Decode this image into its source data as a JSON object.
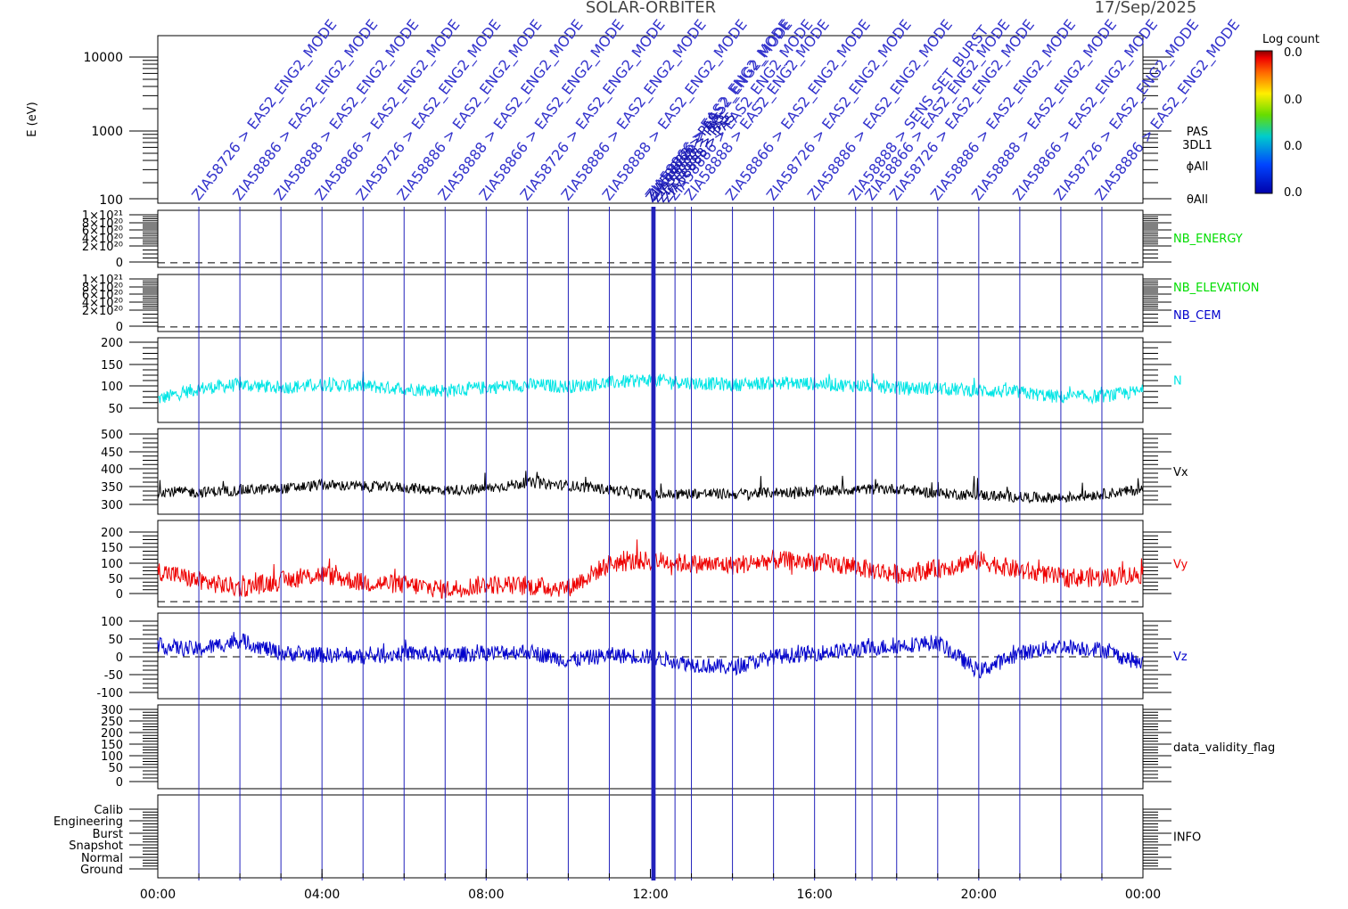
{
  "header": {
    "mission": "SOLAR-ORBITER",
    "date": "17/Sep/2025"
  },
  "colorbar": {
    "title": "Log count",
    "ticks": [
      "0.0",
      "0.0",
      "0.0",
      "0.0"
    ]
  },
  "spectrogram": {
    "ylabel": "E (eV)",
    "yticks": [
      "10000",
      "1000",
      "100"
    ],
    "labels": [
      "PAS",
      "3DL1",
      "ϕAll",
      "θAll"
    ]
  },
  "annotations": {
    "id": "ZIA58888",
    "arrow": ">",
    "mode": "EAS2_ENG2_MODE",
    "burst": "SENS_SET_BURST",
    "pas": "PAS",
    "alt_ids": [
      "ZIA58726",
      "ZIA58886",
      "ZIA58888",
      "ZIA58866"
    ],
    "event_times_h": [
      1.0,
      2.0,
      3.0,
      4.0,
      5.0,
      6.0,
      7.0,
      8.0,
      9.0,
      10.0,
      11.0,
      12.05,
      12.1,
      12.6,
      13.0,
      14.0,
      15.0,
      16.0,
      17.0,
      17.4,
      18.0,
      19.0,
      20.0,
      21.0,
      22.0,
      23.0
    ]
  },
  "panels": [
    {
      "key": "nb_energy",
      "label": "NB_ENERGY",
      "label_color": "#00dd00",
      "ticks": [
        "1×10²¹",
        "8×10²⁰",
        "6×10²⁰",
        "4×10²⁰",
        "2×10²⁰",
        "0"
      ],
      "extra_label": ""
    },
    {
      "key": "nb_elevation",
      "label": "NB_ELEVATION",
      "label_color": "#00dd00",
      "ticks": [
        "1×10²¹",
        "8×10²⁰",
        "6×10²⁰",
        "4×10²⁰",
        "2×10²⁰",
        "0"
      ],
      "extra_label": "NB_CEM",
      "extra_color": "#0000cc"
    },
    {
      "key": "n",
      "label": "N",
      "label_color": "#00e5e5",
      "ticks": [
        "200",
        "150",
        "100",
        "50"
      ]
    },
    {
      "key": "vx",
      "label": "Vx",
      "label_color": "#000000",
      "ticks": [
        "500",
        "450",
        "400",
        "350",
        "300"
      ]
    },
    {
      "key": "vy",
      "label": "Vy",
      "label_color": "#ee0000",
      "ticks": [
        "200",
        "150",
        "100",
        "50",
        "0"
      ]
    },
    {
      "key": "vz",
      "label": "Vz",
      "label_color": "#0000cc",
      "ticks": [
        "100",
        "50",
        "0",
        "-50",
        "-100"
      ]
    },
    {
      "key": "dvf",
      "label": "data_validity_flag",
      "label_color": "#000000",
      "ticks": [
        "300",
        "250",
        "200",
        "150",
        "100",
        "50",
        "0"
      ]
    },
    {
      "key": "info",
      "label": "INFO",
      "label_color": "#000000",
      "ticks": [
        "Calib",
        "Engineering",
        "Burst",
        "Snapshot",
        "Normal",
        "Ground"
      ]
    }
  ],
  "xaxis": {
    "ticks": [
      "00:00",
      "04:00",
      "08:00",
      "12:00",
      "16:00",
      "20:00",
      "00:00"
    ]
  },
  "chart_data": {
    "type": "line",
    "title": "SOLAR-ORBITER 17/Sep/2025",
    "x_unit": "hours",
    "xlim": [
      0,
      24
    ],
    "x": [
      0,
      1,
      2,
      3,
      4,
      5,
      6,
      7,
      8,
      9,
      10,
      11,
      12,
      13,
      14,
      15,
      16,
      17,
      18,
      19,
      20,
      21,
      22,
      23,
      24
    ],
    "series": [
      {
        "name": "N",
        "color": "#00e5e5",
        "ylim": [
          30,
          205
        ],
        "values": [
          78,
          100,
          108,
          102,
          108,
          105,
          100,
          96,
          102,
          108,
          104,
          112,
          118,
          112,
          108,
          112,
          110,
          106,
          102,
          100,
          96,
          92,
          82,
          84,
          95
        ]
      },
      {
        "name": "Vx",
        "color": "#000000",
        "ylim": [
          285,
          510
        ],
        "values": [
          345,
          343,
          348,
          352,
          362,
          358,
          355,
          348,
          352,
          368,
          360,
          350,
          335,
          340,
          338,
          342,
          345,
          350,
          352,
          340,
          335,
          330,
          328,
          338,
          350
        ]
      },
      {
        "name": "Vy",
        "color": "#ee0000",
        "ylim": [
          -15,
          235
        ],
        "values": [
          90,
          60,
          40,
          60,
          80,
          55,
          50,
          35,
          50,
          45,
          40,
          110,
          120,
          110,
          105,
          120,
          115,
          100,
          80,
          95,
          120,
          90,
          70,
          70,
          80
        ]
      },
      {
        "name": "Vz",
        "color": "#0000cc",
        "ylim": [
          -115,
          120
        ],
        "values": [
          30,
          20,
          45,
          10,
          5,
          0,
          10,
          5,
          10,
          15,
          -10,
          5,
          0,
          -20,
          -30,
          0,
          10,
          20,
          30,
          40,
          -40,
          10,
          30,
          20,
          -20
        ]
      }
    ]
  }
}
